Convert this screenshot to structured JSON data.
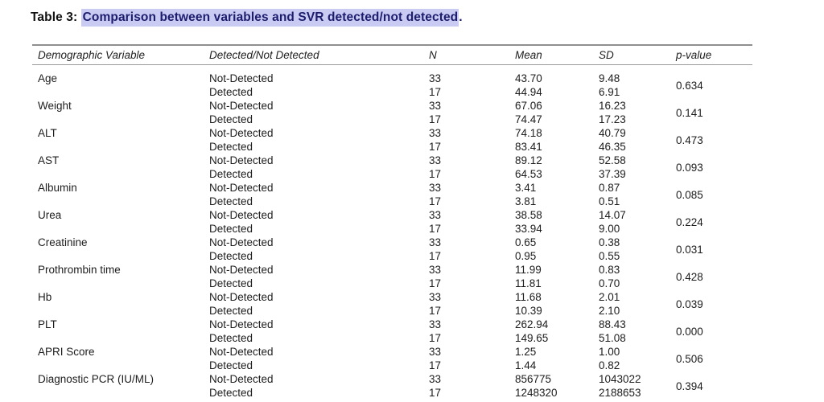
{
  "caption": {
    "prefix": "Table 3: ",
    "highlighted": "Comparison between variables and SVR detected/not detected",
    "suffix": "."
  },
  "colors": {
    "highlight_bg": "#c9cbf2",
    "highlight_text": "#1d1d6e",
    "rule_gray": "#8f8f8f",
    "body_text": "#1d1d1d"
  },
  "table": {
    "headers": [
      "Demographic Variable",
      "Detected/Not Detected",
      "N",
      "Mean",
      "SD",
      "p-value"
    ],
    "rows": [
      {
        "variable": "Age",
        "p": "0.634",
        "entries": [
          {
            "status": "Not-Detected",
            "n": "33",
            "mean": "43.70",
            "sd": "9.48"
          },
          {
            "status": "Detected",
            "n": "17",
            "mean": "44.94",
            "sd": "6.91"
          }
        ]
      },
      {
        "variable": "Weight",
        "p": "0.141",
        "entries": [
          {
            "status": "Not-Detected",
            "n": "33",
            "mean": "67.06",
            "sd": "16.23"
          },
          {
            "status": "Detected",
            "n": "17",
            "mean": "74.47",
            "sd": "17.23"
          }
        ]
      },
      {
        "variable": "ALT",
        "p": "0.473",
        "entries": [
          {
            "status": "Not-Detected",
            "n": "33",
            "mean": "74.18",
            "sd": "40.79"
          },
          {
            "status": "Detected",
            "n": "17",
            "mean": "83.41",
            "sd": "46.35"
          }
        ]
      },
      {
        "variable": "AST",
        "p": "0.093",
        "entries": [
          {
            "status": "Not-Detected",
            "n": "33",
            "mean": "89.12",
            "sd": "52.58"
          },
          {
            "status": "Detected",
            "n": "17",
            "mean": "64.53",
            "sd": "37.39"
          }
        ]
      },
      {
        "variable": "Albumin",
        "p": "0.085",
        "entries": [
          {
            "status": "Not-Detected",
            "n": "33",
            "mean": "3.41",
            "sd": "0.87"
          },
          {
            "status": "Detected",
            "n": "17",
            "mean": "3.81",
            "sd": "0.51"
          }
        ]
      },
      {
        "variable": "Urea",
        "p": "0.224",
        "entries": [
          {
            "status": "Not-Detected",
            "n": "33",
            "mean": "38.58",
            "sd": "14.07"
          },
          {
            "status": "Detected",
            "n": "17",
            "mean": "33.94",
            "sd": "9.00"
          }
        ]
      },
      {
        "variable": "Creatinine",
        "p": "0.031",
        "entries": [
          {
            "status": "Not-Detected",
            "n": "33",
            "mean": "0.65",
            "sd": "0.38"
          },
          {
            "status": "Detected",
            "n": "17",
            "mean": "0.95",
            "sd": "0.55"
          }
        ]
      },
      {
        "variable": "Prothrombin time",
        "p": "0.428",
        "entries": [
          {
            "status": "Not-Detected",
            "n": "33",
            "mean": "11.99",
            "sd": "0.83"
          },
          {
            "status": "Detected",
            "n": "17",
            "mean": "11.81",
            "sd": "0.70"
          }
        ]
      },
      {
        "variable": "Hb",
        "p": "0.039",
        "entries": [
          {
            "status": "Not-Detected",
            "n": "33",
            "mean": "11.68",
            "sd": "2.01"
          },
          {
            "status": "Detected",
            "n": "17",
            "mean": "10.39",
            "sd": "2.10"
          }
        ]
      },
      {
        "variable": "PLT",
        "p": "0.000",
        "entries": [
          {
            "status": "Not-Detected",
            "n": "33",
            "mean": "262.94",
            "sd": "88.43"
          },
          {
            "status": "Detected",
            "n": "17",
            "mean": "149.65",
            "sd": "51.08"
          }
        ]
      },
      {
        "variable": "APRI Score",
        "p": "0.506",
        "entries": [
          {
            "status": "Not-Detected",
            "n": "33",
            "mean": "1.25",
            "sd": "1.00"
          },
          {
            "status": "Detected",
            "n": "17",
            "mean": "1.44",
            "sd": "0.82"
          }
        ]
      },
      {
        "variable": "Diagnostic PCR (IU/ML)",
        "p": "0.394",
        "entries": [
          {
            "status": "Not-Detected",
            "n": "33",
            "mean": "856775",
            "sd": "1043022"
          },
          {
            "status": "Detected",
            "n": "17",
            "mean": "1248320",
            "sd": "2188653"
          }
        ]
      }
    ]
  }
}
